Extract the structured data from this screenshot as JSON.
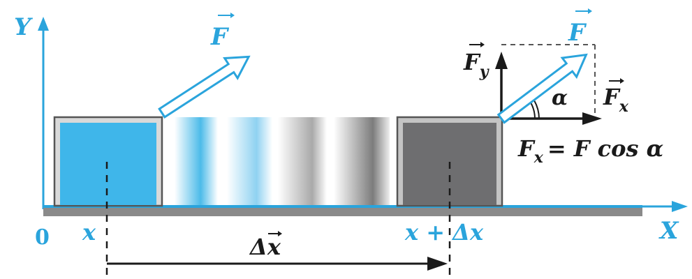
{
  "axes": {
    "y_label": "Y",
    "x_label": "X",
    "origin_label": "0"
  },
  "positions": {
    "start_label": "x",
    "end_label": "x + Δx",
    "displacement_label": "Δx"
  },
  "forces": {
    "force_left_label": "F",
    "force_right_label": "F",
    "fy_label": "F",
    "fy_subscript": "y",
    "fx_label": "F",
    "fx_subscript": "x",
    "angle_label": "α",
    "formula_lhs": "F",
    "formula_lhs_sub": "x",
    "formula_rhs": "= F cos α"
  },
  "colors": {
    "blue": "#2aa4dc",
    "block_blue": "#3fb6ea",
    "block_gray": "#6e6e70",
    "ground_gray": "#8a8a8a",
    "dark": "#1a1a1a"
  }
}
